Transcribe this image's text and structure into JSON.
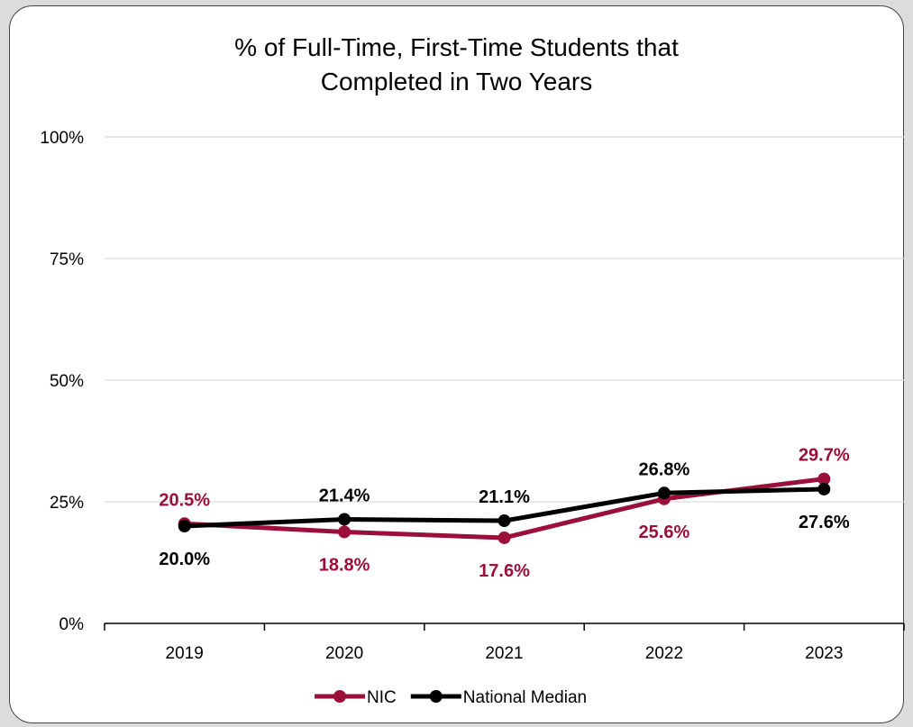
{
  "chart_data": {
    "type": "line",
    "title_line1": "% of Full-Time, First-Time Students that",
    "title_line2": "Completed in Two Years",
    "xlabel": "",
    "ylabel": "",
    "categories": [
      "2019",
      "2020",
      "2021",
      "2022",
      "2023"
    ],
    "ylim": [
      0,
      100
    ],
    "yticks": [
      0,
      25,
      50,
      75,
      100
    ],
    "ytick_labels": [
      "0%",
      "25%",
      "50%",
      "75%",
      "100%"
    ],
    "grid": true,
    "legend_position": "bottom",
    "series": [
      {
        "name": "NIC",
        "color": "#9b0f3b",
        "values": [
          20.5,
          18.8,
          17.6,
          25.6,
          29.7
        ],
        "labels": [
          "20.5%",
          "18.8%",
          "17.6%",
          "25.6%",
          "29.7%"
        ],
        "label_side": [
          "above",
          "below",
          "below",
          "below",
          "above"
        ]
      },
      {
        "name": "National Median",
        "color": "#000000",
        "values": [
          20.0,
          21.4,
          21.1,
          26.8,
          27.6
        ],
        "labels": [
          "20.0%",
          "21.4%",
          "21.1%",
          "26.8%",
          "27.6%"
        ],
        "label_side": [
          "below",
          "above",
          "above",
          "above",
          "below"
        ]
      }
    ]
  }
}
